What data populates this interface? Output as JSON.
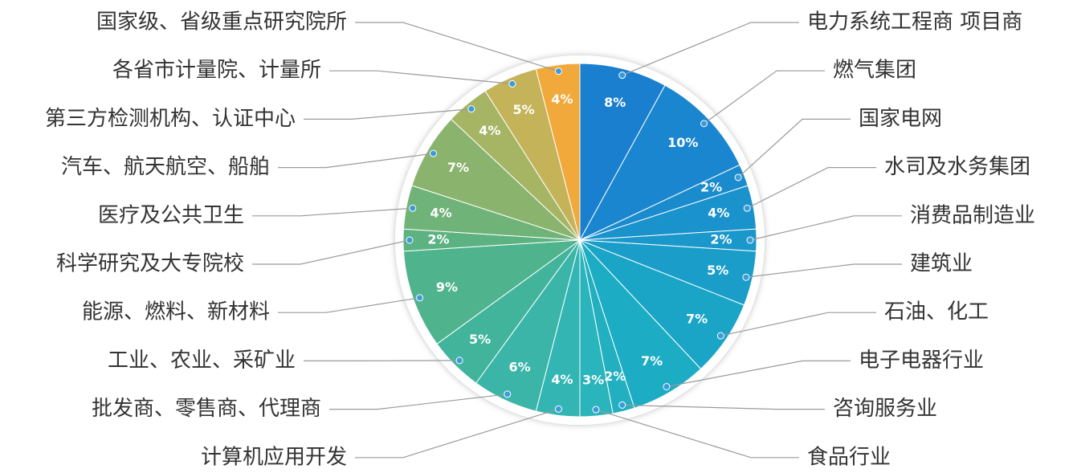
{
  "chart_data": {
    "type": "pie",
    "categories": [
      "电力系统工程商 项目商",
      "燃气集团",
      "国家电网",
      "水司及水务集团",
      "消费品制造业",
      "建筑业",
      "石油、化工",
      "电子电器行业",
      "咨询服务业",
      "食品行业",
      "计算机应用开发",
      "批发商、零售商、代理商",
      "工业、农业、采矿业",
      "能源、燃料、新材料",
      "科学研究及大专院校",
      "医疗及公共卫生",
      "汽车、航天航空、船舶",
      "第三方检测机构、认证中心",
      "各省市计量院、计量所",
      "国家级、省级重点研究院所"
    ],
    "values": [
      8,
      10,
      2,
      4,
      2,
      5,
      7,
      7,
      2,
      3,
      4,
      6,
      5,
      9,
      2,
      4,
      7,
      4,
      5,
      4
    ],
    "value_labels": [
      "8%",
      "10%",
      "2%",
      "4%",
      "2%",
      "5%",
      "7%",
      "7%",
      "2%",
      "3%",
      "4%",
      "6%",
      "5%",
      "9%",
      "2%",
      "4%",
      "7%",
      "4%",
      "5%",
      "4%"
    ],
    "colors": [
      "#1a7fcf",
      "#1a86cf",
      "#1a8ccd",
      "#1a92cc",
      "#1a98cb",
      "#1a9ec9",
      "#1aa5c7",
      "#1cacc4",
      "#22b0c0",
      "#2ab4bb",
      "#33b6b3",
      "#3ab5a8",
      "#42b49c",
      "#4fb38e",
      "#5db282",
      "#70b378",
      "#8ab36d",
      "#a5b564",
      "#c5b35a",
      "#f2a93b"
    ]
  }
}
